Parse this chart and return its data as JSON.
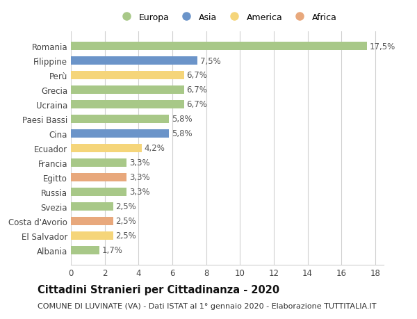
{
  "categories": [
    "Albania",
    "El Salvador",
    "Costa d'Avorio",
    "Svezia",
    "Russia",
    "Egitto",
    "Francia",
    "Ecuador",
    "Cina",
    "Paesi Bassi",
    "Ucraina",
    "Grecia",
    "Perù",
    "Filippine",
    "Romania"
  ],
  "values": [
    1.7,
    2.5,
    2.5,
    2.5,
    3.3,
    3.3,
    3.3,
    4.2,
    5.8,
    5.8,
    6.7,
    6.7,
    6.7,
    7.5,
    17.5
  ],
  "labels": [
    "1,7%",
    "2,5%",
    "2,5%",
    "2,5%",
    "3,3%",
    "3,3%",
    "3,3%",
    "4,2%",
    "5,8%",
    "5,8%",
    "6,7%",
    "6,7%",
    "6,7%",
    "7,5%",
    "17,5%"
  ],
  "continents": [
    "Europa",
    "America",
    "Africa",
    "Europa",
    "Europa",
    "Africa",
    "Europa",
    "America",
    "Asia",
    "Europa",
    "Europa",
    "Europa",
    "America",
    "Asia",
    "Europa"
  ],
  "colors": {
    "Europa": "#a8c888",
    "Asia": "#6b94c9",
    "America": "#f5d57a",
    "Africa": "#e8a87c"
  },
  "xlim": [
    0,
    18.5
  ],
  "xticks": [
    0,
    2,
    4,
    6,
    8,
    10,
    12,
    14,
    16,
    18
  ],
  "title": "Cittadini Stranieri per Cittadinanza - 2020",
  "subtitle": "COMUNE DI LUVINATE (VA) - Dati ISTAT al 1° gennaio 2020 - Elaborazione TUTTITALIA.IT",
  "background_color": "#ffffff",
  "grid_color": "#d0d0d0",
  "bar_height": 0.55,
  "title_fontsize": 10.5,
  "subtitle_fontsize": 8,
  "tick_fontsize": 8.5,
  "label_fontsize": 8.5,
  "legend_order": [
    "Europa",
    "Asia",
    "America",
    "Africa"
  ]
}
